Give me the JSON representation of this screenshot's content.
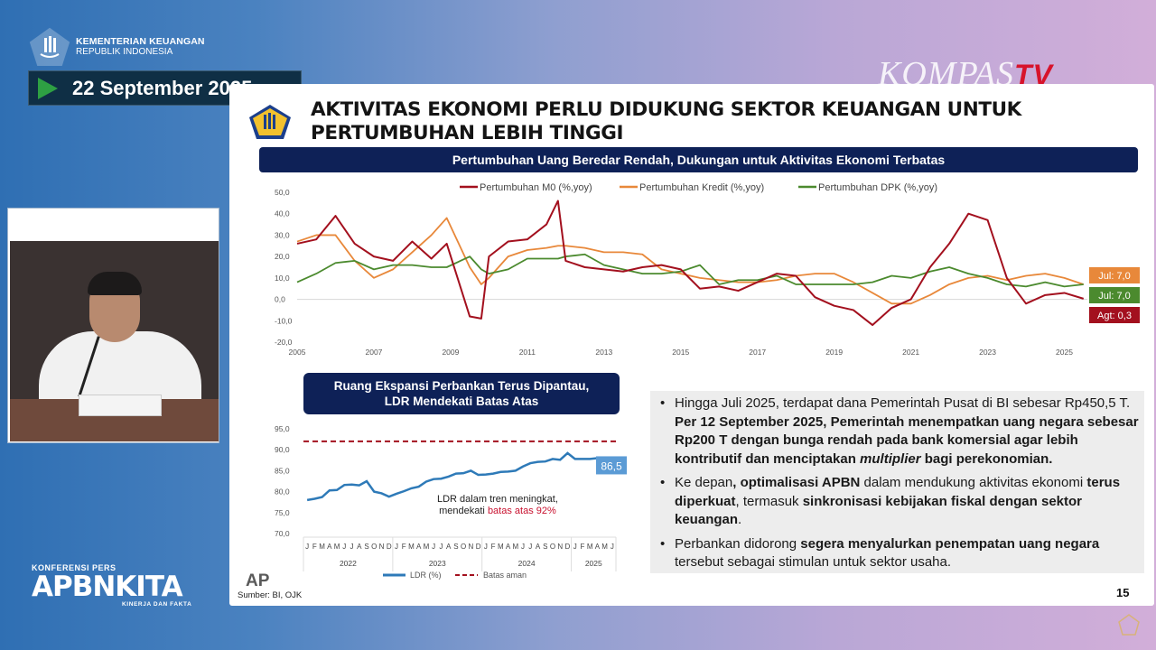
{
  "overlay": {
    "ministry_line1": "KEMENTERIAN KEUANGAN",
    "ministry_line2": "REPUBLIK INDONESIA",
    "date": "22 September 2025",
    "broadcaster": "KOMPAS",
    "broadcaster_suffix": "TV",
    "event_small": "KONFERENSI PERS",
    "event_name": "APBNKITA",
    "event_tagline": "KINERJA DAN FAKTA"
  },
  "slide": {
    "title": "AKTIVITAS EKONOMI PERLU DIDUKUNG SEKTOR KEUANGAN UNTUK PERTUMBUHAN LEBIH TINGGI",
    "section1_title": "Pertumbuhan Uang Beredar Rendah, Dukungan untuk Aktivitas Ekonomi Terbatas",
    "section2_title_l1": "Ruang Ekspansi Perbankan Terus Dipantau,",
    "section2_title_l2": "LDR Mendekati Batas Atas",
    "ldr_note_l1": "LDR dalam tren meningkat,",
    "ldr_note_l2_pre": "mendekati ",
    "ldr_note_l2_red": "batas atas 92%",
    "ap_mark": "AP",
    "source": "Sumber: BI, OJK",
    "page_number": "15",
    "tags": {
      "kredit": "Jul: 7,0",
      "dpk": "Jul: 7,0",
      "m0": "Agt: 0,3"
    },
    "ldr_last_label": "86,5",
    "bullets": [
      {
        "p1": "Hingga Juli 2025, terdapat dana Pemerintah Pusat di BI sebesar Rp450,5 T. ",
        "b1": "Per 12 September 2025, Pemerintah menempatkan uang negara sebesar Rp200 T dengan bunga rendah pada bank komersial agar lebih kontributif dan menciptakan ",
        "i1": "multiplier",
        "b2": " bagi perekonomian."
      },
      {
        "p1": "Ke depan",
        "b1": ", optimalisasi APBN",
        "p2": " dalam mendukung aktivitas ekonomi ",
        "b2": "terus diperkuat",
        "p3": ", termasuk ",
        "b3": "sinkronisasi kebijakan fiskal dengan sektor keuangan",
        "p4": "."
      },
      {
        "p1": "Perbankan didorong ",
        "b1": "segera menyalurkan penempatan uang negara",
        "p2": " tersebut sebagai stimulan untuk sektor usaha."
      }
    ]
  },
  "colors": {
    "m0": "#a3101e",
    "kredit": "#e8883a",
    "dpk": "#4b8a2e",
    "ldr": "#2e7ab8",
    "batas": "#a3101e",
    "navy": "#0e2157"
  },
  "chart_data": [
    {
      "type": "line",
      "title": "Pertumbuhan Uang Beredar Rendah, Dukungan untuk Aktivitas Ekonomi Terbatas",
      "xlabel": "",
      "ylabel": "%, yoy",
      "ylim": [
        -20,
        50
      ],
      "yticks": [
        "50,0",
        "40,0",
        "30,0",
        "20,0",
        "10,0",
        "0,0",
        "-10,0",
        "-20,0"
      ],
      "xticks": [
        "2005",
        "2007",
        "2009",
        "2011",
        "2013",
        "2015",
        "2017",
        "2019",
        "2021",
        "2023",
        "2025"
      ],
      "legend_position": "top",
      "grid": false,
      "x": [
        2005.0,
        2005.5,
        2006.0,
        2006.5,
        2007.0,
        2007.5,
        2008.0,
        2008.5,
        2008.9,
        2009.5,
        2009.8,
        2010.0,
        2010.5,
        2011.0,
        2011.5,
        2011.8,
        2012.0,
        2012.5,
        2013.0,
        2013.5,
        2014.0,
        2014.5,
        2015.0,
        2015.5,
        2016.0,
        2016.5,
        2017.0,
        2017.5,
        2018.0,
        2018.5,
        2019.0,
        2019.5,
        2020.0,
        2020.5,
        2021.0,
        2021.5,
        2022.0,
        2022.5,
        2023.0,
        2023.5,
        2024.0,
        2024.5,
        2025.0,
        2025.5
      ],
      "series": [
        {
          "name": "Pertumbuhan M0 (%,yoy)",
          "values": [
            26,
            28,
            39,
            26,
            20,
            18,
            27,
            19,
            26,
            -8,
            -9,
            20,
            27,
            28,
            35,
            46,
            18,
            15,
            14,
            13,
            15,
            16,
            14,
            5,
            6,
            4,
            8,
            12,
            11,
            1,
            -3,
            -5,
            -12,
            -4,
            0,
            15,
            26,
            40,
            37,
            10,
            -2,
            2,
            3,
            0.3
          ]
        },
        {
          "name": "Pertumbuhan Kredit (%,yoy)",
          "values": [
            27,
            30,
            30,
            18,
            10,
            14,
            22,
            30,
            38,
            15,
            7,
            10,
            20,
            23,
            24,
            25,
            25,
            24,
            22,
            22,
            21,
            14,
            12,
            10,
            9,
            8,
            8,
            9,
            11,
            12,
            12,
            8,
            3,
            -2,
            -2,
            2,
            7,
            10,
            11,
            9,
            11,
            12,
            10,
            7.0
          ]
        },
        {
          "name": "Pertumbuhan DPK (%,yoy)",
          "values": [
            8,
            12,
            17,
            18,
            14,
            16,
            16,
            15,
            15,
            20,
            14,
            12,
            14,
            19,
            19,
            19,
            20,
            21,
            16,
            14,
            12,
            12,
            13,
            16,
            7,
            9,
            9,
            11,
            7,
            7,
            7,
            7,
            8,
            11,
            10,
            13,
            15,
            12,
            10,
            7,
            6,
            8,
            6,
            7.0
          ]
        }
      ],
      "annotations": [
        "Jul: 7,0 (Kredit)",
        "Jul: 7,0 (DPK)",
        "Agt: 0,3 (M0)"
      ]
    },
    {
      "type": "line",
      "title": "Ruang Ekspansi Perbankan Terus Dipantau, LDR Mendekati Batas Atas",
      "xlabel": "",
      "ylabel": "",
      "ylim": [
        70,
        95
      ],
      "yticks": [
        "95,0",
        "90,0",
        "85,0",
        "80,0",
        "75,0",
        "70,0"
      ],
      "categories": [
        "J",
        "F",
        "M",
        "A",
        "M",
        "J",
        "J",
        "A",
        "S",
        "O",
        "N",
        "D",
        "J",
        "F",
        "M",
        "A",
        "M",
        "J",
        "J",
        "A",
        "S",
        "O",
        "N",
        "D",
        "J",
        "F",
        "M",
        "A",
        "M",
        "J",
        "J",
        "A",
        "S",
        "O",
        "N",
        "D",
        "J",
        "F",
        "M",
        "A",
        "M",
        "J"
      ],
      "year_groups": [
        "2022",
        "2023",
        "2024",
        "2025"
      ],
      "legend_position": "bottom",
      "series": [
        {
          "name": "LDR (%)",
          "values": [
            78.0,
            78.3,
            78.7,
            80.3,
            80.4,
            81.6,
            81.7,
            81.5,
            82.5,
            80.0,
            79.6,
            78.8,
            79.5,
            80.1,
            80.8,
            81.2,
            82.4,
            83.0,
            83.1,
            83.6,
            84.3,
            84.4,
            85.0,
            84.0,
            84.1,
            84.3,
            84.7,
            84.8,
            85.0,
            86.0,
            86.8,
            87.1,
            87.2,
            87.8,
            87.6,
            89.2,
            87.8,
            87.8,
            87.8,
            88.0,
            88.0,
            86.5
          ]
        },
        {
          "name": "Batas aman",
          "values": [
            92,
            92,
            92,
            92,
            92,
            92,
            92,
            92,
            92,
            92,
            92,
            92,
            92,
            92,
            92,
            92,
            92,
            92,
            92,
            92,
            92,
            92,
            92,
            92,
            92,
            92,
            92,
            92,
            92,
            92,
            92,
            92,
            92,
            92,
            92,
            92,
            92,
            92,
            92,
            92,
            92,
            92
          ]
        }
      ],
      "annotations": [
        "86,5",
        "LDR dalam tren meningkat, mendekati batas atas 92%"
      ]
    }
  ]
}
